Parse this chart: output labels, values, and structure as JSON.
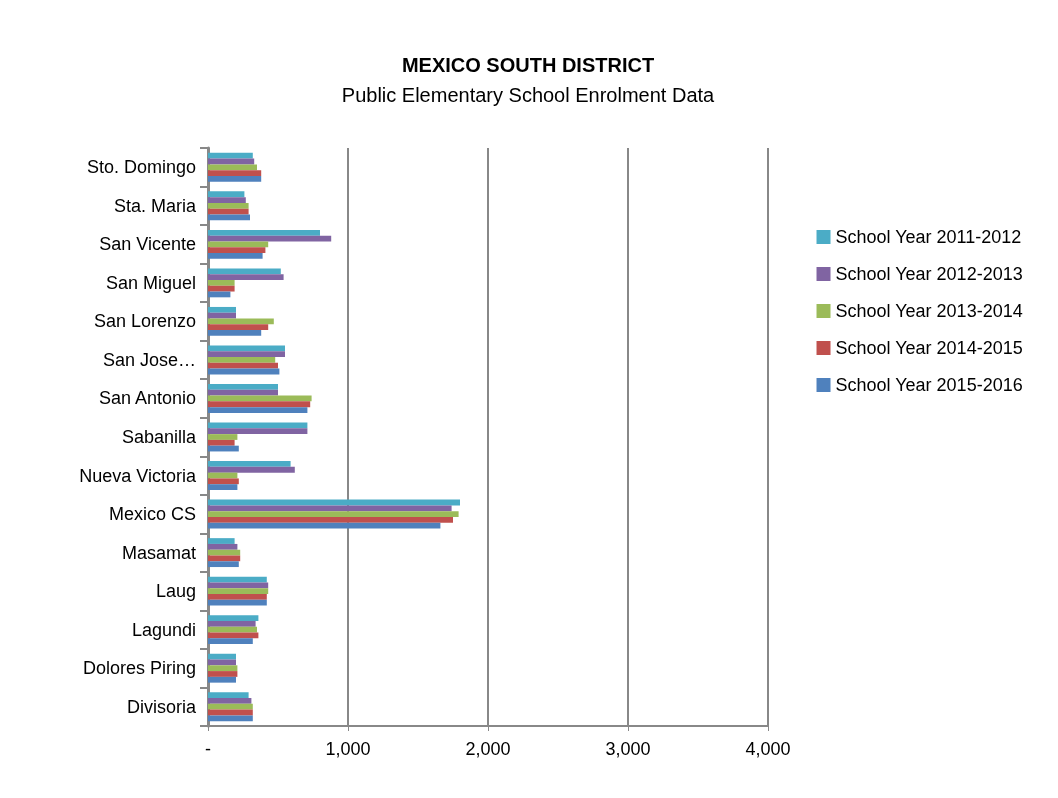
{
  "chart_data": {
    "type": "bar",
    "orientation": "horizontal",
    "title": "MEXICO SOUTH DISTRICT",
    "subtitle": "Public Elementary School Enrolment Data",
    "categories": [
      "Sto. Domingo",
      "Sta. Maria",
      "San Vicente",
      "San Miguel",
      "San Lorenzo",
      "San Jose…",
      "San Antonio",
      "Sabanilla",
      "Nueva Victoria",
      "Mexico CS",
      "Masamat",
      "Laug",
      "Lagundi",
      "Dolores Piring",
      "Divisoria"
    ],
    "series": [
      {
        "name": "School Year 2011-2012",
        "color": "#4bacc6",
        "values": [
          320,
          260,
          800,
          520,
          200,
          550,
          500,
          710,
          590,
          1800,
          190,
          420,
          360,
          200,
          290
        ]
      },
      {
        "name": "School Year 2012-2013",
        "color": "#8064a2",
        "values": [
          330,
          270,
          880,
          540,
          200,
          550,
          500,
          710,
          620,
          1740,
          210,
          430,
          340,
          200,
          310
        ]
      },
      {
        "name": "School Year 2013-2014",
        "color": "#9bbb59",
        "values": [
          350,
          290,
          430,
          190,
          470,
          480,
          740,
          210,
          210,
          1790,
          230,
          430,
          350,
          210,
          320
        ]
      },
      {
        "name": "School Year 2014-2015",
        "color": "#c0504d",
        "values": [
          380,
          290,
          410,
          190,
          430,
          500,
          730,
          190,
          220,
          1750,
          230,
          420,
          360,
          210,
          320
        ]
      },
      {
        "name": "School Year 2015-2016",
        "color": "#4f81bd",
        "values": [
          380,
          300,
          390,
          160,
          380,
          510,
          710,
          220,
          210,
          1660,
          220,
          420,
          320,
          200,
          320
        ]
      }
    ],
    "xlim": [
      0,
      4000
    ],
    "xticks": [
      {
        "value": 0,
        "label": "-"
      },
      {
        "value": 1000,
        "label": "1,000"
      },
      {
        "value": 2000,
        "label": "2,000"
      },
      {
        "value": 3000,
        "label": "3,000"
      },
      {
        "value": 4000,
        "label": "4,000"
      }
    ],
    "grid": "x",
    "legend": "right"
  }
}
